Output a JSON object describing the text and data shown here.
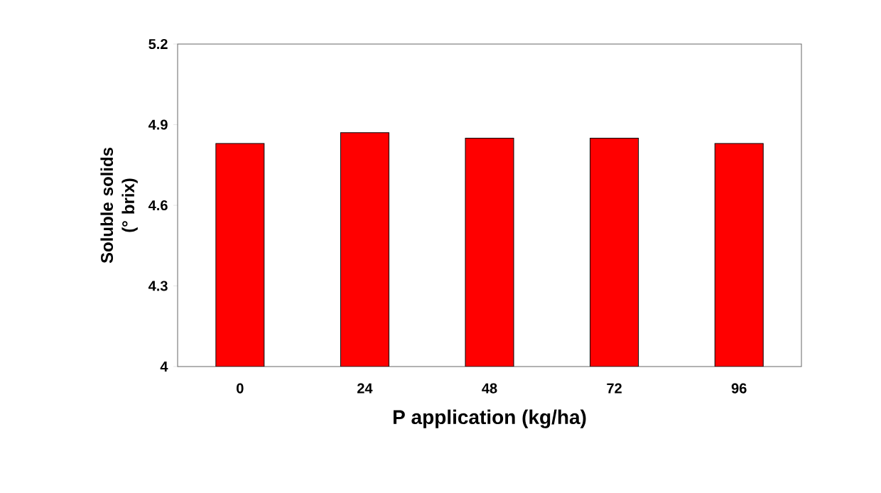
{
  "chart_data": {
    "type": "bar",
    "xlabel": "P application (kg/ha)",
    "ylabel": "Soluble solids (° brix)",
    "categories": [
      "0",
      "24",
      "48",
      "72",
      "96"
    ],
    "values": [
      4.83,
      4.87,
      4.85,
      4.85,
      4.83
    ],
    "color": "#ff0000",
    "ylim": [
      4,
      5.2
    ],
    "yticks": [
      4,
      4.3,
      4.6,
      4.9,
      5.2
    ],
    "grid": false
  }
}
